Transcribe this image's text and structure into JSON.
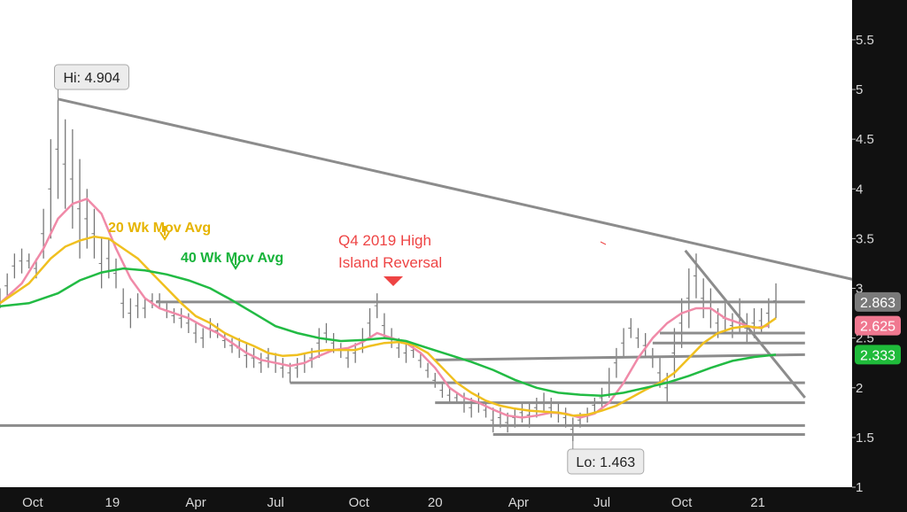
{
  "chart_data": {
    "type": "line",
    "title": "",
    "xlabel": "",
    "ylabel": "",
    "ylim": [
      1,
      5.9
    ],
    "xlim": [
      0,
      235
    ],
    "x_ticks": [
      {
        "label": "Oct",
        "x": 9
      },
      {
        "label": "19",
        "x": 31
      },
      {
        "label": "Apr",
        "x": 54
      },
      {
        "label": "Jul",
        "x": 76
      },
      {
        "label": "Oct",
        "x": 99
      },
      {
        "label": "20",
        "x": 120
      },
      {
        "label": "Apr",
        "x": 143
      },
      {
        "label": "Jul",
        "x": 166
      },
      {
        "label": "Oct",
        "x": 188
      },
      {
        "label": "21",
        "x": 209
      }
    ],
    "y_ticks": [
      1,
      1.5,
      2,
      2.5,
      3,
      3.5,
      4,
      4.5,
      5,
      5.5
    ],
    "price_bars": [
      [
        0,
        2.8,
        3.0
      ],
      [
        2,
        2.9,
        3.15
      ],
      [
        4,
        3.1,
        3.35
      ],
      [
        6,
        3.15,
        3.4
      ],
      [
        8,
        3.2,
        3.35
      ],
      [
        10,
        3.1,
        3.3
      ],
      [
        12,
        3.3,
        3.8
      ],
      [
        14,
        3.5,
        4.5
      ],
      [
        16,
        3.9,
        4.9
      ],
      [
        18,
        3.8,
        4.7
      ],
      [
        20,
        3.6,
        4.6
      ],
      [
        22,
        3.3,
        4.3
      ],
      [
        24,
        3.4,
        4.0
      ],
      [
        26,
        3.3,
        3.8
      ],
      [
        28,
        3.0,
        3.5
      ],
      [
        30,
        3.1,
        3.5
      ],
      [
        32,
        3.0,
        3.3
      ],
      [
        34,
        2.7,
        3.0
      ],
      [
        36,
        2.6,
        2.9
      ],
      [
        38,
        2.7,
        2.95
      ],
      [
        40,
        2.7,
        2.9
      ],
      [
        42,
        2.8,
        2.95
      ],
      [
        44,
        2.8,
        2.95
      ],
      [
        46,
        2.7,
        2.85
      ],
      [
        48,
        2.65,
        2.8
      ],
      [
        50,
        2.6,
        2.8
      ],
      [
        52,
        2.55,
        2.75
      ],
      [
        54,
        2.45,
        2.65
      ],
      [
        56,
        2.4,
        2.6
      ],
      [
        58,
        2.5,
        2.7
      ],
      [
        60,
        2.5,
        2.65
      ],
      [
        62,
        2.4,
        2.55
      ],
      [
        64,
        2.35,
        2.5
      ],
      [
        66,
        2.3,
        2.5
      ],
      [
        68,
        2.2,
        2.45
      ],
      [
        70,
        2.2,
        2.4
      ],
      [
        72,
        2.15,
        2.35
      ],
      [
        74,
        2.2,
        2.4
      ],
      [
        76,
        2.15,
        2.35
      ],
      [
        78,
        2.1,
        2.3
      ],
      [
        80,
        2.05,
        2.25
      ],
      [
        82,
        2.1,
        2.3
      ],
      [
        84,
        2.15,
        2.35
      ],
      [
        86,
        2.2,
        2.4
      ],
      [
        88,
        2.3,
        2.6
      ],
      [
        90,
        2.45,
        2.65
      ],
      [
        92,
        2.35,
        2.55
      ],
      [
        94,
        2.3,
        2.45
      ],
      [
        96,
        2.2,
        2.4
      ],
      [
        98,
        2.25,
        2.45
      ],
      [
        100,
        2.35,
        2.6
      ],
      [
        102,
        2.5,
        2.8
      ],
      [
        104,
        2.7,
        2.95
      ],
      [
        106,
        2.5,
        2.75
      ],
      [
        108,
        2.4,
        2.6
      ],
      [
        110,
        2.3,
        2.5
      ],
      [
        112,
        2.25,
        2.45
      ],
      [
        114,
        2.3,
        2.45
      ],
      [
        116,
        2.2,
        2.35
      ],
      [
        118,
        2.1,
        2.25
      ],
      [
        120,
        2.0,
        2.15
      ],
      [
        122,
        1.9,
        2.05
      ],
      [
        124,
        1.85,
        2.0
      ],
      [
        126,
        1.85,
        1.95
      ],
      [
        128,
        1.75,
        1.95
      ],
      [
        130,
        1.7,
        1.9
      ],
      [
        132,
        1.75,
        1.95
      ],
      [
        134,
        1.7,
        1.85
      ],
      [
        136,
        1.55,
        1.8
      ],
      [
        138,
        1.6,
        1.8
      ],
      [
        140,
        1.55,
        1.75
      ],
      [
        142,
        1.6,
        1.8
      ],
      [
        144,
        1.65,
        1.85
      ],
      [
        146,
        1.6,
        1.85
      ],
      [
        148,
        1.7,
        1.9
      ],
      [
        150,
        1.75,
        1.95
      ],
      [
        152,
        1.7,
        1.9
      ],
      [
        154,
        1.65,
        1.85
      ],
      [
        156,
        1.6,
        1.8
      ],
      [
        158,
        1.463,
        1.7
      ],
      [
        160,
        1.6,
        1.75
      ],
      [
        162,
        1.65,
        1.8
      ],
      [
        164,
        1.75,
        1.9
      ],
      [
        166,
        1.8,
        2.0
      ],
      [
        168,
        1.9,
        2.2
      ],
      [
        170,
        2.1,
        2.4
      ],
      [
        172,
        2.3,
        2.6
      ],
      [
        174,
        2.5,
        2.7
      ],
      [
        176,
        2.4,
        2.6
      ],
      [
        178,
        2.3,
        2.55
      ],
      [
        180,
        2.2,
        2.4
      ],
      [
        182,
        2.0,
        2.3
      ],
      [
        184,
        1.85,
        2.15
      ],
      [
        186,
        2.1,
        2.6
      ],
      [
        188,
        2.4,
        2.9
      ],
      [
        190,
        2.6,
        3.2
      ],
      [
        192,
        2.9,
        3.35
      ],
      [
        194,
        2.7,
        3.1
      ],
      [
        196,
        2.6,
        3.0
      ],
      [
        198,
        2.5,
        2.8
      ],
      [
        200,
        2.55,
        2.85
      ],
      [
        202,
        2.5,
        2.75
      ],
      [
        204,
        2.55,
        2.9
      ],
      [
        206,
        2.45,
        2.75
      ],
      [
        208,
        2.5,
        2.8
      ],
      [
        210,
        2.55,
        2.8
      ],
      [
        212,
        2.6,
        2.9
      ],
      [
        214,
        2.7,
        3.05
      ]
    ],
    "series": [
      {
        "name": "20 Wk Mov Avg",
        "color": "#f0c020",
        "points": [
          [
            0,
            2.85
          ],
          [
            8,
            3.05
          ],
          [
            14,
            3.3
          ],
          [
            18,
            3.42
          ],
          [
            22,
            3.48
          ],
          [
            26,
            3.52
          ],
          [
            30,
            3.5
          ],
          [
            34,
            3.4
          ],
          [
            38,
            3.3
          ],
          [
            42,
            3.15
          ],
          [
            46,
            3.0
          ],
          [
            50,
            2.85
          ],
          [
            54,
            2.72
          ],
          [
            58,
            2.65
          ],
          [
            62,
            2.55
          ],
          [
            66,
            2.48
          ],
          [
            70,
            2.42
          ],
          [
            74,
            2.35
          ],
          [
            78,
            2.32
          ],
          [
            82,
            2.33
          ],
          [
            86,
            2.36
          ],
          [
            90,
            2.38
          ],
          [
            94,
            2.38
          ],
          [
            98,
            2.38
          ],
          [
            102,
            2.42
          ],
          [
            106,
            2.45
          ],
          [
            110,
            2.46
          ],
          [
            114,
            2.43
          ],
          [
            118,
            2.35
          ],
          [
            122,
            2.2
          ],
          [
            126,
            2.05
          ],
          [
            130,
            1.95
          ],
          [
            134,
            1.87
          ],
          [
            138,
            1.82
          ],
          [
            142,
            1.79
          ],
          [
            146,
            1.77
          ],
          [
            150,
            1.76
          ],
          [
            154,
            1.75
          ],
          [
            158,
            1.72
          ],
          [
            162,
            1.73
          ],
          [
            166,
            1.77
          ],
          [
            170,
            1.82
          ],
          [
            174,
            1.9
          ],
          [
            178,
            1.98
          ],
          [
            182,
            2.05
          ],
          [
            186,
            2.15
          ],
          [
            190,
            2.3
          ],
          [
            194,
            2.45
          ],
          [
            198,
            2.55
          ],
          [
            202,
            2.6
          ],
          [
            206,
            2.62
          ],
          [
            210,
            2.6
          ],
          [
            214,
            2.7
          ]
        ]
      },
      {
        "name": "40 Wk Mov Avg",
        "color": "#22bb44",
        "points": [
          [
            0,
            2.82
          ],
          [
            8,
            2.85
          ],
          [
            16,
            2.95
          ],
          [
            22,
            3.08
          ],
          [
            28,
            3.16
          ],
          [
            34,
            3.2
          ],
          [
            40,
            3.18
          ],
          [
            46,
            3.14
          ],
          [
            52,
            3.08
          ],
          [
            58,
            3.0
          ],
          [
            64,
            2.88
          ],
          [
            70,
            2.75
          ],
          [
            76,
            2.62
          ],
          [
            82,
            2.55
          ],
          [
            88,
            2.5
          ],
          [
            94,
            2.47
          ],
          [
            100,
            2.48
          ],
          [
            106,
            2.5
          ],
          [
            112,
            2.47
          ],
          [
            118,
            2.4
          ],
          [
            124,
            2.33
          ],
          [
            130,
            2.26
          ],
          [
            136,
            2.18
          ],
          [
            142,
            2.08
          ],
          [
            148,
            2.0
          ],
          [
            154,
            1.95
          ],
          [
            160,
            1.93
          ],
          [
            166,
            1.92
          ],
          [
            172,
            1.95
          ],
          [
            178,
            2.0
          ],
          [
            184,
            2.05
          ],
          [
            190,
            2.12
          ],
          [
            196,
            2.2
          ],
          [
            202,
            2.27
          ],
          [
            208,
            2.31
          ],
          [
            214,
            2.333
          ]
        ]
      }
    ],
    "pink_line": {
      "color": "#f08aa8",
      "points": [
        [
          0,
          2.85
        ],
        [
          6,
          3.05
        ],
        [
          12,
          3.4
        ],
        [
          16,
          3.7
        ],
        [
          20,
          3.85
        ],
        [
          24,
          3.9
        ],
        [
          28,
          3.75
        ],
        [
          32,
          3.4
        ],
        [
          36,
          3.1
        ],
        [
          40,
          2.9
        ],
        [
          44,
          2.8
        ],
        [
          48,
          2.75
        ],
        [
          52,
          2.7
        ],
        [
          56,
          2.62
        ],
        [
          60,
          2.55
        ],
        [
          64,
          2.45
        ],
        [
          68,
          2.35
        ],
        [
          72,
          2.28
        ],
        [
          76,
          2.25
        ],
        [
          80,
          2.22
        ],
        [
          84,
          2.25
        ],
        [
          88,
          2.32
        ],
        [
          92,
          2.38
        ],
        [
          96,
          2.4
        ],
        [
          100,
          2.46
        ],
        [
          104,
          2.55
        ],
        [
          108,
          2.5
        ],
        [
          112,
          2.45
        ],
        [
          116,
          2.35
        ],
        [
          120,
          2.2
        ],
        [
          124,
          2.0
        ],
        [
          128,
          1.9
        ],
        [
          132,
          1.85
        ],
        [
          136,
          1.78
        ],
        [
          140,
          1.72
        ],
        [
          144,
          1.7
        ],
        [
          148,
          1.72
        ],
        [
          152,
          1.75
        ],
        [
          156,
          1.74
        ],
        [
          160,
          1.7
        ],
        [
          164,
          1.74
        ],
        [
          168,
          1.85
        ],
        [
          172,
          2.05
        ],
        [
          176,
          2.3
        ],
        [
          180,
          2.5
        ],
        [
          184,
          2.65
        ],
        [
          188,
          2.75
        ],
        [
          192,
          2.8
        ],
        [
          196,
          2.8
        ],
        [
          200,
          2.7
        ],
        [
          204,
          2.65
        ],
        [
          208,
          2.6
        ],
        [
          212,
          2.625
        ]
      ]
    },
    "labels": [
      {
        "text": "20 Wk Mov Avg",
        "color": "#e6b400"
      },
      {
        "text": "40 Wk Mov Avg",
        "color": "#17b33a"
      },
      {
        "text": "Q4 2019 High",
        "color": "#ee4444"
      },
      {
        "text": "Island Reversal",
        "color": "#ee4444"
      }
    ],
    "hi": {
      "text": "Hi: 4.904",
      "value": 4.904,
      "x": 16
    },
    "lo": {
      "text": "Lo: 1.463",
      "value": 1.463,
      "x": 158
    },
    "price_tags": [
      {
        "text": "2.863",
        "value": 2.863,
        "bg": "#7a7a7a"
      },
      {
        "text": "2.625",
        "value": 2.625,
        "bg": "#f07890"
      },
      {
        "text": "2.333",
        "value": 2.333,
        "bg": "#1fbb3a"
      }
    ],
    "trendlines": [
      {
        "points": [
          [
            16,
            4.904
          ],
          [
            240,
            3.05
          ]
        ],
        "color": "#8c8c8c"
      },
      {
        "points": [
          [
            189,
            3.38
          ],
          [
            222,
            1.9
          ]
        ],
        "color": "#8c8c8c"
      },
      {
        "points": [
          [
            43,
            2.863
          ],
          [
            222,
            2.863
          ]
        ],
        "color": "#8c8c8c"
      },
      {
        "points": [
          [
            182,
            2.55
          ],
          [
            222,
            2.55
          ]
        ],
        "color": "#8c8c8c"
      },
      {
        "points": [
          [
            180,
            2.45
          ],
          [
            222,
            2.45
          ]
        ],
        "color": "#8c8c8c"
      },
      {
        "points": [
          [
            120,
            2.28
          ],
          [
            222,
            2.333
          ]
        ],
        "color": "#8c8c8c"
      },
      {
        "points": [
          [
            80,
            2.05
          ],
          [
            222,
            2.05
          ]
        ],
        "color": "#8c8c8c"
      },
      {
        "points": [
          [
            120,
            1.85
          ],
          [
            222,
            1.85
          ]
        ],
        "color": "#8c8c8c"
      },
      {
        "points": [
          [
            0,
            1.62
          ],
          [
            222,
            1.62
          ]
        ],
        "color": "#8c8c8c"
      },
      {
        "points": [
          [
            136,
            1.53
          ],
          [
            222,
            1.53
          ]
        ],
        "color": "#8c8c8c"
      }
    ]
  }
}
